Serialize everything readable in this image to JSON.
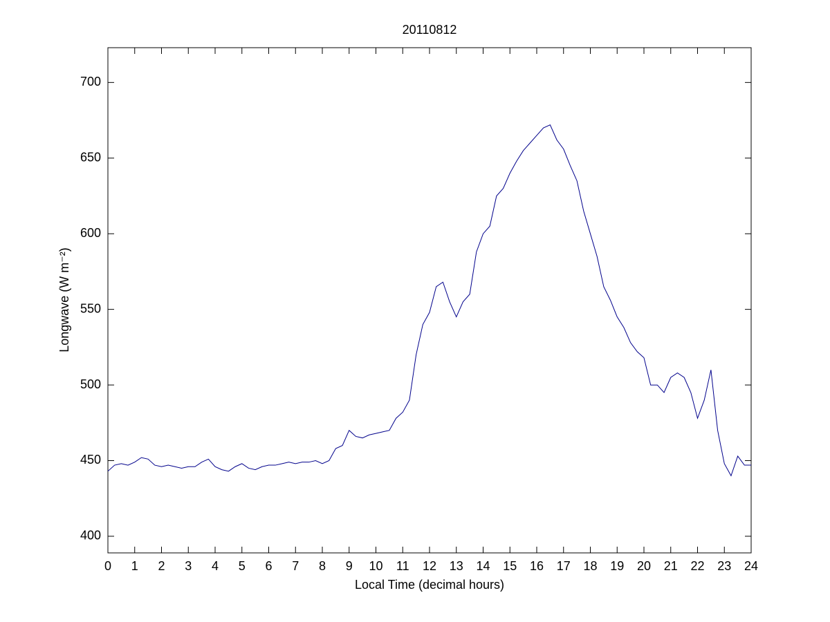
{
  "chart_data": {
    "type": "line",
    "title": "20110812",
    "xlabel": "Local Time (decimal hours)",
    "ylabel": "Longwave (W m⁻²)",
    "x": [
      0,
      0.25,
      0.5,
      0.75,
      1,
      1.25,
      1.5,
      1.75,
      2,
      2.25,
      2.5,
      2.75,
      3,
      3.25,
      3.5,
      3.75,
      4,
      4.25,
      4.5,
      4.75,
      5,
      5.25,
      5.5,
      5.75,
      6,
      6.25,
      6.5,
      6.75,
      7,
      7.25,
      7.5,
      7.75,
      8,
      8.25,
      8.5,
      8.75,
      9,
      9.25,
      9.5,
      9.75,
      10,
      10.25,
      10.5,
      10.75,
      11,
      11.25,
      11.5,
      11.75,
      12,
      12.25,
      12.5,
      12.75,
      13,
      13.25,
      13.5,
      13.75,
      14,
      14.25,
      14.5,
      14.75,
      15,
      15.25,
      15.5,
      15.75,
      16,
      16.25,
      16.5,
      16.75,
      17,
      17.25,
      17.5,
      17.75,
      18,
      18.25,
      18.5,
      18.75,
      19,
      19.25,
      19.5,
      19.75,
      20,
      20.25,
      20.5,
      20.75,
      21,
      21.25,
      21.5,
      21.75,
      22,
      22.25,
      22.5,
      22.75,
      23,
      23.25,
      23.5,
      23.75,
      24
    ],
    "series": [
      {
        "name": "Longwave",
        "color": "#00008b",
        "values": [
          443,
          447,
          448,
          447,
          449,
          452,
          451,
          447,
          446,
          447,
          446,
          445,
          446,
          446,
          449,
          451,
          446,
          444,
          443,
          446,
          448,
          445,
          444,
          446,
          447,
          447,
          448,
          449,
          448,
          449,
          449,
          450,
          448,
          450,
          458,
          460,
          470,
          466,
          465,
          467,
          468,
          469,
          470,
          478,
          482,
          490,
          520,
          540,
          548,
          565,
          568,
          555,
          545,
          555,
          560,
          588,
          600,
          605,
          625,
          630,
          640,
          648,
          655,
          660,
          665,
          670,
          672,
          662,
          656,
          645,
          635,
          615,
          600,
          585,
          565,
          556,
          545,
          538,
          528,
          522,
          518,
          500,
          500,
          495,
          505,
          508,
          505,
          495,
          478,
          490,
          510,
          470,
          448,
          440,
          453,
          447,
          447
        ]
      }
    ],
    "xlim": [
      0,
      24
    ],
    "xticks": [
      0,
      1,
      2,
      3,
      4,
      5,
      6,
      7,
      8,
      9,
      10,
      11,
      12,
      13,
      14,
      15,
      16,
      17,
      18,
      19,
      20,
      21,
      22,
      23,
      24
    ],
    "ylim": [
      389,
      723
    ],
    "yticks": [
      400,
      450,
      500,
      550,
      600,
      650,
      700
    ]
  }
}
